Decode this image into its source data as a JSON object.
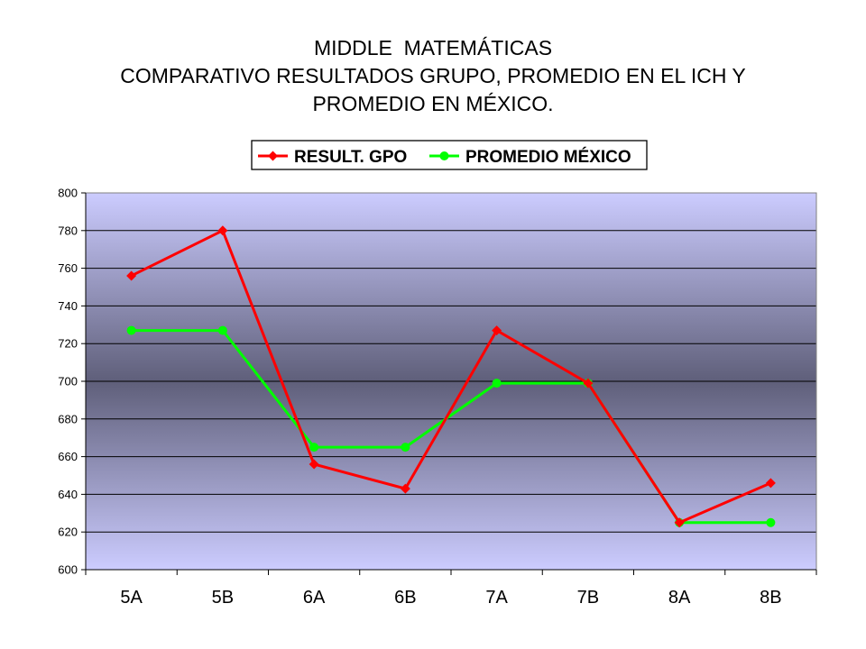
{
  "title_lines": [
    "MIDDLE  MATEMÁTICAS",
    "COMPARATIVO RESULTADOS GRUPO, PROMEDIO EN EL ICH Y",
    "PROMEDIO EN MÉXICO."
  ],
  "chart_data": {
    "type": "line",
    "title": "MIDDLE  MATEMÁTICAS COMPARATIVO RESULTADOS GRUPO, PROMEDIO EN EL ICH Y PROMEDIO EN MÉXICO.",
    "categories": [
      "5A",
      "5B",
      "6A",
      "6B",
      "7A",
      "7B",
      "8A",
      "8B"
    ],
    "series": [
      {
        "name": "RESULT. GPO",
        "values": [
          756,
          780,
          656,
          643,
          727,
          699,
          625,
          646
        ],
        "color": "#ff0000",
        "marker": "diamond"
      },
      {
        "name": "PROMEDIO MÉXICO",
        "values": [
          727,
          727,
          665,
          665,
          699,
          699,
          625,
          625
        ],
        "color": "#00ff00",
        "marker": "circle"
      }
    ],
    "ylim": [
      600,
      800
    ],
    "yticks": [
      600,
      620,
      640,
      660,
      680,
      700,
      720,
      740,
      760,
      780,
      800
    ],
    "grid": true,
    "legend_position": "top",
    "background": {
      "edge": "#ccccff",
      "center": "#5f5f7a"
    },
    "xlabel": "",
    "ylabel": ""
  }
}
